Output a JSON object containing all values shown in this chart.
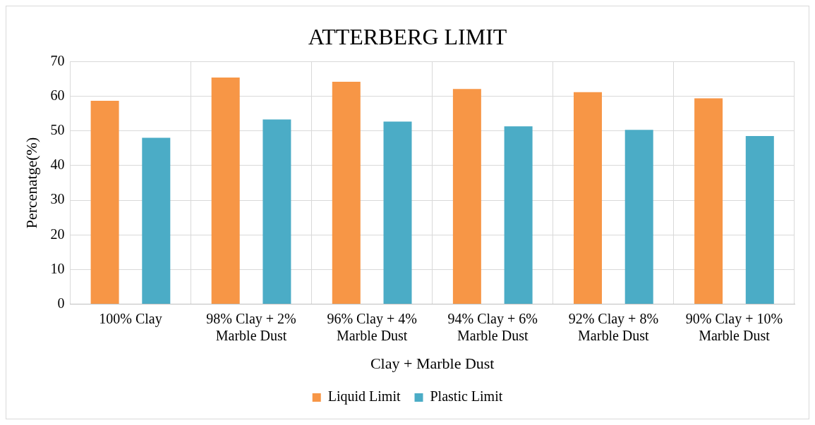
{
  "chart_data": {
    "type": "bar",
    "title": "ATTERBERG LIMIT",
    "xlabel": "Clay + Marble Dust",
    "ylabel": "Percenatge(%)",
    "categories": [
      "100% Clay",
      "98% Clay + 2% Marble Dust",
      "96% Clay + 4% Marble Dust",
      "94% Clay + 6% Marble Dust",
      "92% Clay + 8% Marble Dust",
      "90% Clay + 10% Marble Dust"
    ],
    "series": [
      {
        "name": "Liquid Limit",
        "color": "#f79646",
        "values": [
          58.7,
          65.4,
          64.2,
          62.1,
          61.2,
          59.4
        ]
      },
      {
        "name": "Plastic Limit",
        "color": "#4bacc6",
        "values": [
          48.0,
          53.3,
          52.7,
          51.3,
          50.3,
          48.5
        ]
      }
    ],
    "ylim": [
      0,
      70
    ],
    "yticks": [
      0,
      10,
      20,
      30,
      40,
      50,
      60,
      70
    ],
    "grid": true,
    "legend": "bottom"
  }
}
